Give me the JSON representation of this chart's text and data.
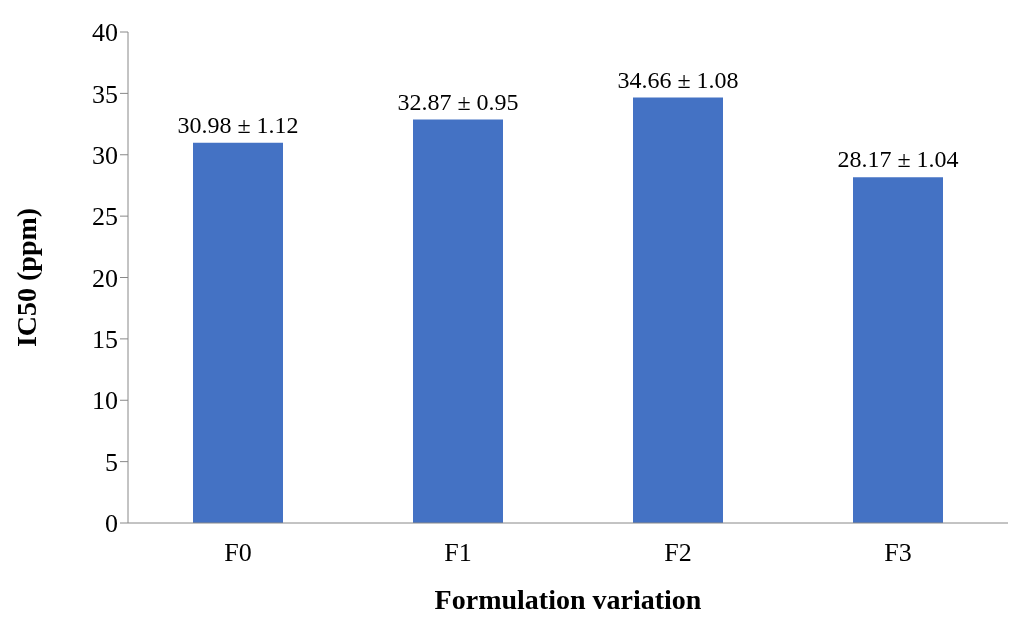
{
  "chart_data": {
    "type": "bar",
    "xlabel": "Formulation variation",
    "ylabel": "IC50 (ppm)",
    "categories": [
      "F0",
      "F1",
      "F2",
      "F3"
    ],
    "values": [
      30.98,
      32.87,
      34.66,
      28.17
    ],
    "value_labels": [
      "30.98 ± 1.12",
      "32.87 ± 0.95",
      "34.66 ± 1.08",
      "28.17 ± 1.04"
    ],
    "color": "#4472c4",
    "ylim": [
      0,
      40
    ],
    "yticks": [
      0,
      5,
      10,
      15,
      20,
      25,
      30,
      35,
      40
    ],
    "grid": false
  }
}
